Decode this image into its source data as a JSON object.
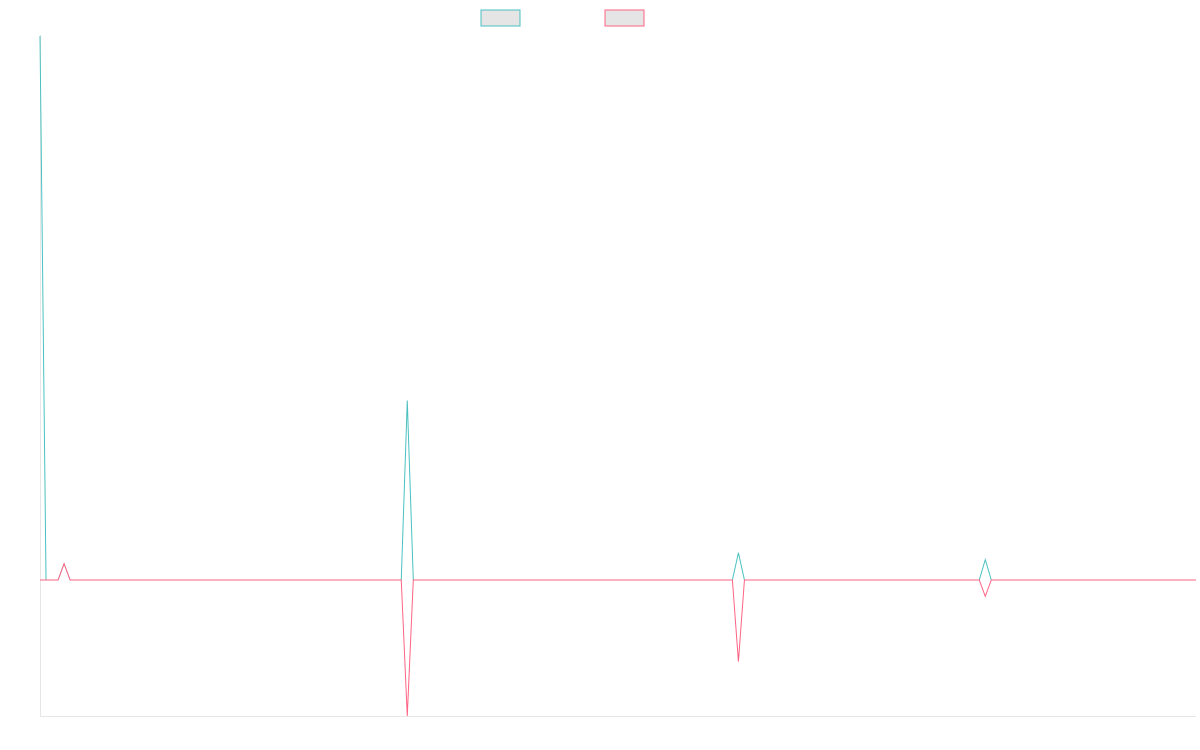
{
  "chart_data": {
    "type": "line",
    "x": [
      0,
      1,
      2,
      3,
      4,
      5,
      6,
      7,
      8,
      9,
      10,
      11,
      12,
      13,
      14,
      15,
      16,
      17,
      18,
      19,
      20,
      21,
      22,
      23,
      24,
      25,
      26,
      27,
      28,
      29,
      30,
      31,
      32,
      33,
      34,
      35,
      36,
      37,
      38,
      39,
      40,
      41,
      42,
      43,
      44,
      45,
      46,
      47,
      48,
      49,
      50,
      51,
      52,
      53,
      54,
      55,
      56,
      57,
      58,
      59,
      60,
      61,
      62,
      63,
      64,
      65,
      66,
      67,
      68,
      69,
      70,
      71,
      72,
      73,
      74,
      75,
      76,
      77,
      78,
      79,
      80,
      81,
      82,
      83,
      84,
      85,
      86,
      87,
      88,
      89,
      90,
      91,
      92,
      93,
      94,
      95,
      96,
      97,
      98,
      99,
      100,
      101,
      102,
      103,
      104,
      105,
      106,
      107,
      108,
      109,
      110,
      111,
      112,
      113,
      114,
      115,
      116,
      117,
      118,
      119,
      120,
      121,
      122,
      123,
      124,
      125,
      126,
      127,
      128,
      129,
      130,
      131,
      132,
      133,
      134,
      135,
      136,
      137,
      138,
      139,
      140,
      141,
      142,
      143,
      144,
      145,
      146,
      147,
      148,
      149,
      150,
      151,
      152,
      153,
      154,
      155,
      156,
      157,
      158,
      159,
      160,
      161,
      162,
      163,
      164,
      165,
      166,
      167,
      168,
      169,
      170,
      171,
      172,
      173,
      174,
      175,
      176,
      177,
      178,
      179,
      180,
      181,
      182,
      183,
      184,
      185,
      186,
      187,
      188,
      189,
      190,
      191,
      192
    ],
    "series": [
      {
        "color": "#4bc0c0",
        "spikes": [
          {
            "x": 0,
            "y": 200
          },
          {
            "x": 4,
            "y": 6
          },
          {
            "x": 61,
            "y": 66
          },
          {
            "x": 116,
            "y": 10
          },
          {
            "x": 157,
            "y": 7.5
          }
        ]
      },
      {
        "color": "#ff6384",
        "spikes": [
          {
            "x": 4,
            "y": 6
          },
          {
            "x": 61,
            "y": -50
          },
          {
            "x": 116,
            "y": -30
          },
          {
            "x": 157,
            "y": -6
          }
        ]
      }
    ],
    "ylim": [
      -50,
      200
    ],
    "grid": false,
    "legend_position": "top"
  }
}
